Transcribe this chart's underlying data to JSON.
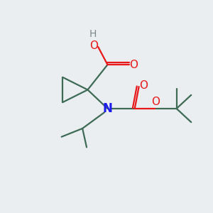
{
  "background_color": "#ebeef0",
  "bond_color": "#3d6b56",
  "oxygen_color": "#e8181a",
  "nitrogen_color": "#1a1aee",
  "hydrogen_color": "#7a8a88",
  "line_width": 1.6,
  "font_size": 11,
  "figsize": [
    3.0,
    3.0
  ],
  "dpi": 100,
  "xlim": [
    0,
    10
  ],
  "ylim": [
    0,
    10
  ]
}
